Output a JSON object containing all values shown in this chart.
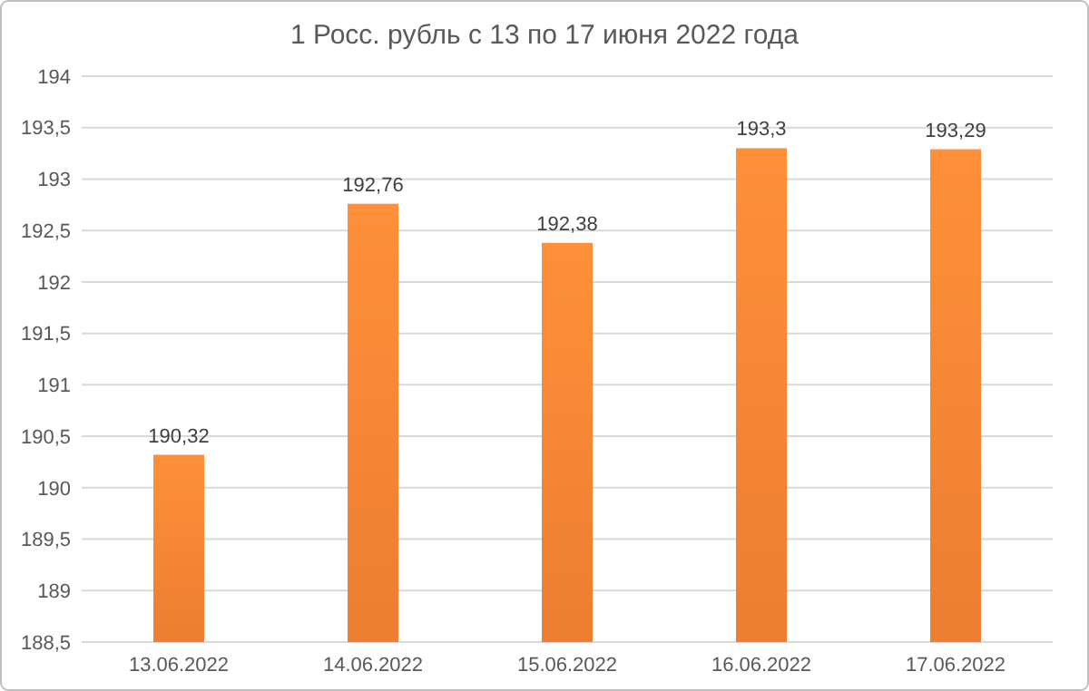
{
  "chart_data": {
    "type": "bar",
    "title": "1 Росс. рубль с 13 по 17 июня 2022 года",
    "categories": [
      "13.06.2022",
      "14.06.2022",
      "15.06.2022",
      "16.06.2022",
      "17.06.2022"
    ],
    "values": [
      190.32,
      192.76,
      192.38,
      193.3,
      193.29
    ],
    "value_labels": [
      "190,32",
      "192,76",
      "192,38",
      "193,3",
      "193,29"
    ],
    "color": "#ed7d31",
    "ylim": [
      188.5,
      194
    ],
    "yticks": [
      {
        "value": 188.5,
        "label": "188,5"
      },
      189,
      {
        "value": 189.5,
        "label": "189,5"
      },
      190,
      {
        "value": 190.5,
        "label": "190,5"
      },
      191,
      {
        "value": 191.5,
        "label": "191,5"
      },
      192,
      {
        "value": 192.5,
        "label": "192,5"
      },
      193,
      {
        "value": 193.5,
        "label": "193,5"
      },
      194
    ],
    "grid": "y"
  }
}
